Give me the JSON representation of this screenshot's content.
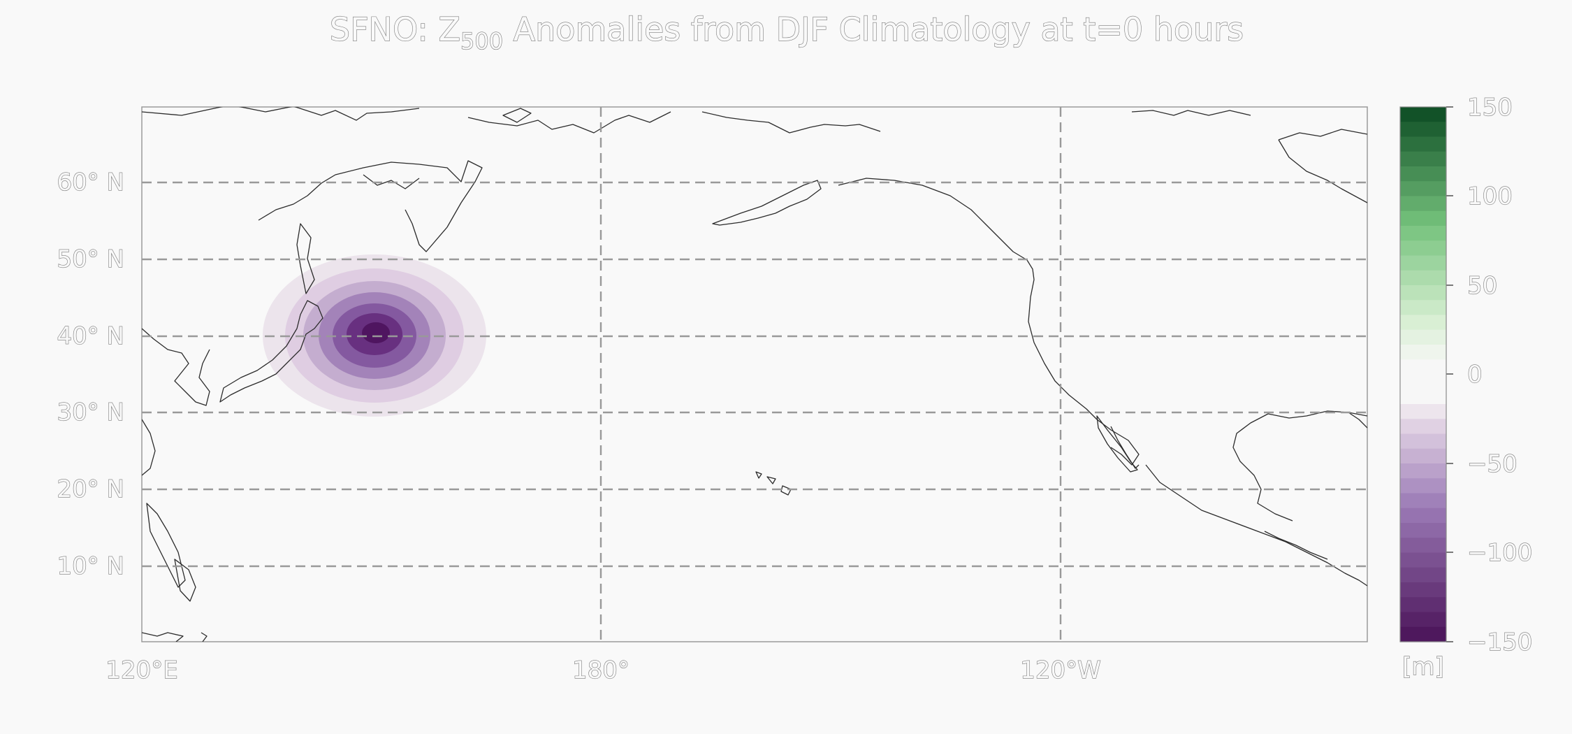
{
  "title": {
    "prefix": "SFNO: Z",
    "subscript": "500",
    "suffix": " Anomalies from DJF Climatology at t=0 hours"
  },
  "map": {
    "lat_labels": [
      "60° N",
      "50° N",
      "40° N",
      "30° N",
      "20° N",
      "10° N"
    ],
    "lon_labels": [
      "120°E",
      "180°",
      "120°W"
    ],
    "anomaly": {
      "center_lat": 40,
      "center_lon": 151,
      "peak_value": -150
    }
  },
  "colorbar": {
    "ticks": [
      "150",
      "100",
      "50",
      "0",
      "−50",
      "−100",
      "−150"
    ],
    "unit": "[m]",
    "min": -150,
    "max": 150,
    "colormap": "PRGn",
    "colors": {
      "neg_dark": "#4a1258",
      "neg_mid": "#9a79b5",
      "neg_light": "#e8dbe8",
      "neutral": "#f7f7f7",
      "pos_light": "#d8efd3",
      "pos_mid": "#75c27c",
      "pos_dark": "#0b4a22"
    }
  },
  "chart_data": {
    "type": "heatmap",
    "title": "SFNO: Z500 Anomalies from DJF Climatology at t=0 hours",
    "x": [
      "120°E",
      "180°",
      "120°W"
    ],
    "y": [
      "10° N",
      "20° N",
      "30° N",
      "40° N",
      "50° N",
      "60° N"
    ],
    "colorbar_ticks": [
      150,
      100,
      50,
      0,
      -50,
      -100,
      -150
    ],
    "colorbar_unit": "[m]",
    "zlim": [
      -150,
      150
    ],
    "grid": true
  }
}
